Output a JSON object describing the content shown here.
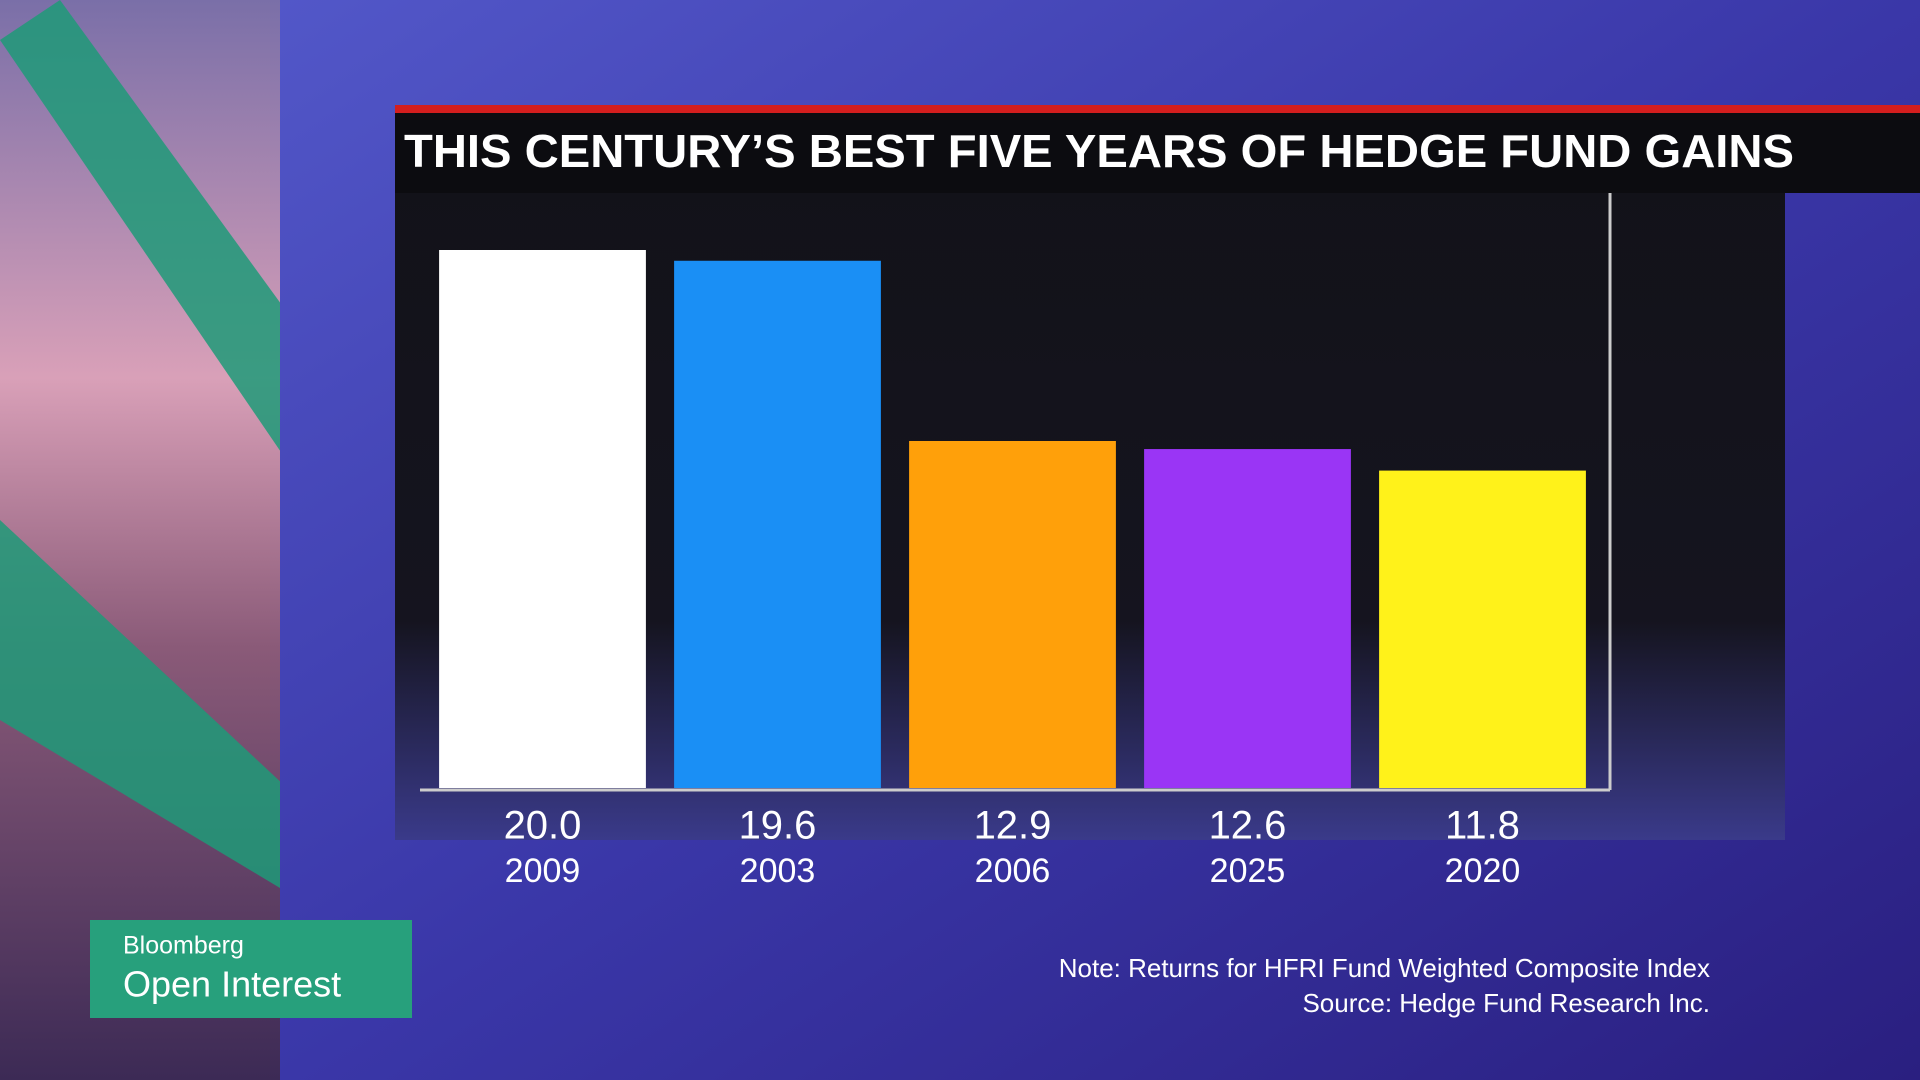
{
  "chart_data": {
    "type": "bar",
    "title": "THIS CENTURY’S BEST FIVE YEARS OF HEDGE FUND GAINS",
    "categories": [
      "2009",
      "2003",
      "2006",
      "2025",
      "2020"
    ],
    "values": [
      20.0,
      19.6,
      12.9,
      12.6,
      11.8
    ],
    "value_labels": [
      "20.0",
      "19.6",
      "12.9",
      "12.6",
      "11.8"
    ],
    "colors": [
      "#ffffff",
      "#1a8ff5",
      "#ffa00a",
      "#9a35f5",
      "#fff21a"
    ],
    "note": "Note: Returns for HFRI Fund Weighted Composite Index",
    "source": "Source: Hedge Fund Research Inc."
  },
  "branding": {
    "network": "Bloomberg",
    "show": "Open Interest"
  }
}
